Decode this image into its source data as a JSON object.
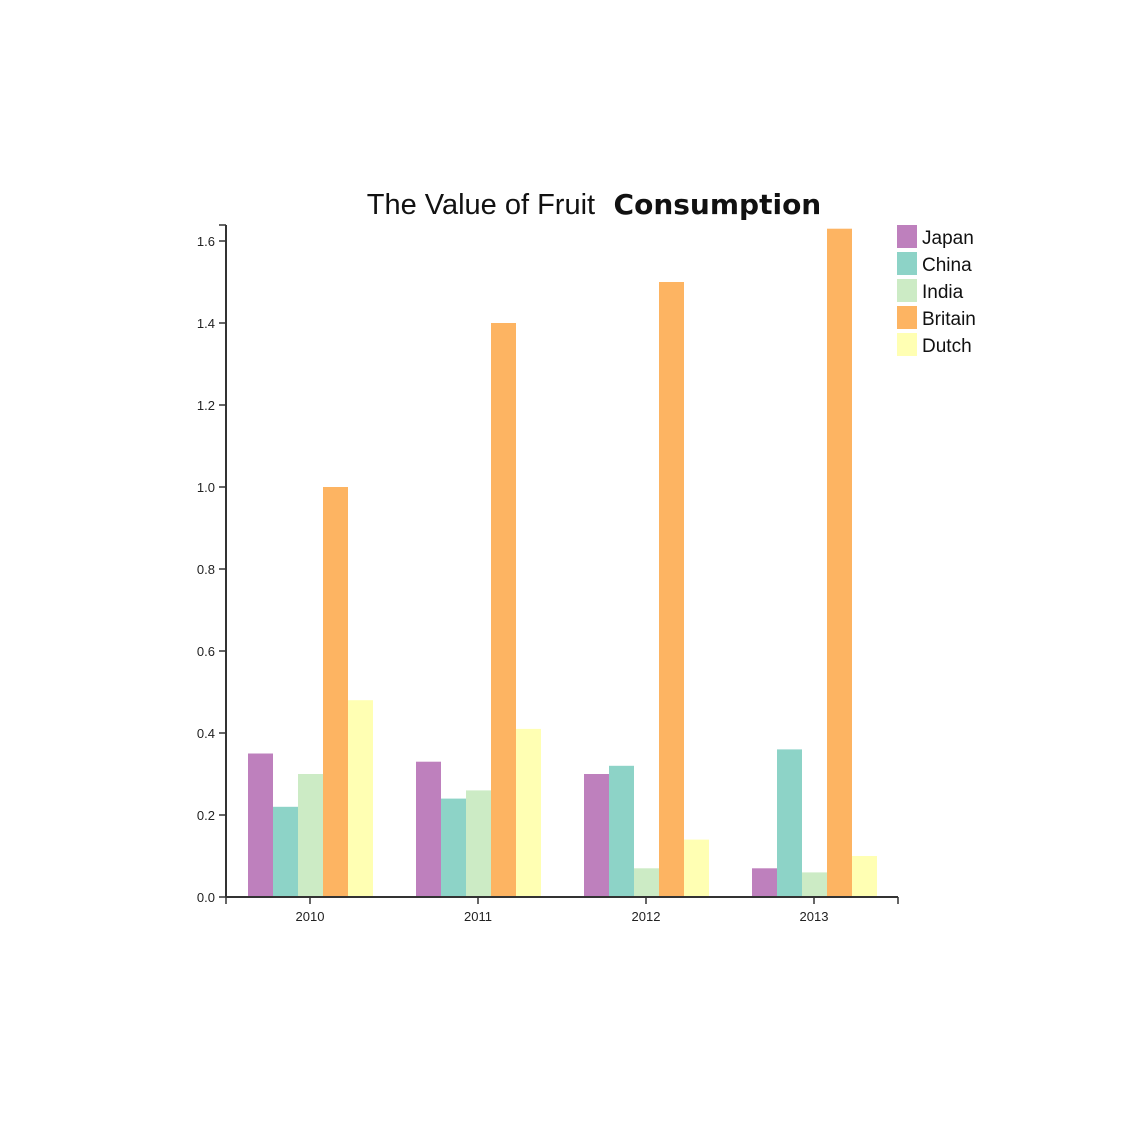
{
  "chart_data": {
    "type": "bar",
    "title_parts": [
      "The Value of Fruit",
      "Consumption"
    ],
    "xlabel": "",
    "ylabel": "",
    "categories": [
      "2010",
      "2011",
      "2012",
      "2013"
    ],
    "ylim": [
      0,
      1.6
    ],
    "yticks": [
      "0.0",
      "0.2",
      "0.4",
      "0.6",
      "0.8",
      "1.0",
      "1.2",
      "1.4",
      "1.6"
    ],
    "grid": false,
    "legend_position": "top-right",
    "series": [
      {
        "name": "Japan",
        "color": "#BE80BD",
        "values": [
          0.35,
          0.33,
          0.3,
          0.07
        ]
      },
      {
        "name": "China",
        "color": "#8DD3C7",
        "values": [
          0.22,
          0.24,
          0.32,
          0.36
        ]
      },
      {
        "name": "India",
        "color": "#CCEBC5",
        "values": [
          0.3,
          0.26,
          0.07,
          0.06
        ]
      },
      {
        "name": "Britain",
        "color": "#FDB462",
        "values": [
          1.0,
          1.4,
          1.5,
          1.63
        ]
      },
      {
        "name": "Dutch",
        "color": "#FFFFB3",
        "values": [
          0.48,
          0.41,
          0.14,
          0.1
        ]
      }
    ]
  }
}
